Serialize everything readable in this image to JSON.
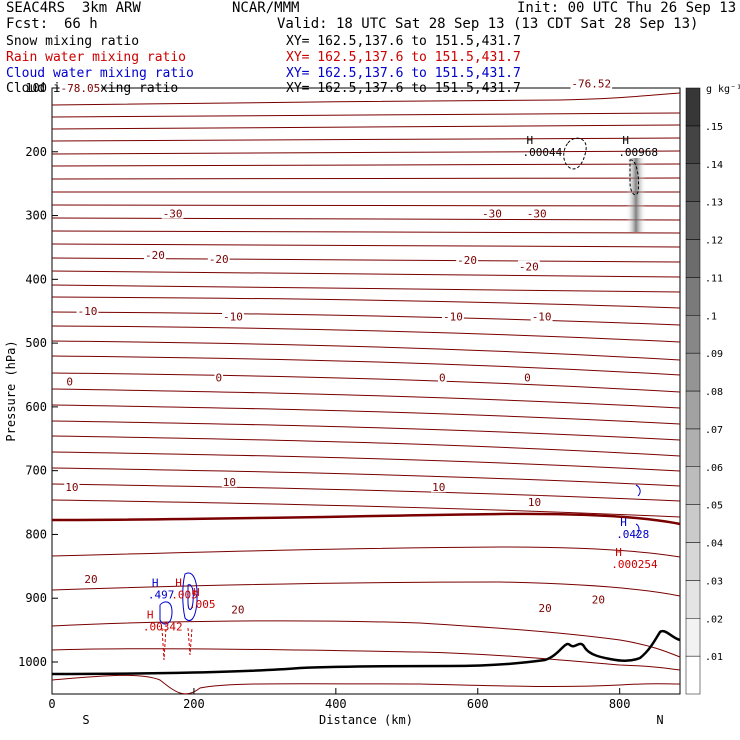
{
  "header": {
    "model": "SEAC4RS  3km ARW",
    "center": "NCAR/MMM",
    "init": "Init: 00 UTC Thu 26 Sep 13",
    "fcst_label": "Fcst:",
    "fcst_value": "66 h",
    "valid": "Valid: 18 UTC Sat 28 Sep 13 (13 CDT Sat 28 Sep 13)",
    "fields": [
      {
        "name": "Snow mixing ratio",
        "xy": "XY= 162.5,137.6 to 151.5,431.7",
        "color": "#000000"
      },
      {
        "name": "Rain water mixing ratio",
        "xy": "XY= 162.5,137.6 to 151.5,431.7",
        "color": "#cc0000"
      },
      {
        "name": "Cloud water mixing ratio",
        "xy": "XY= 162.5,137.6 to 151.5,431.7",
        "color": "#0000cc"
      },
      {
        "name": "Cloud ice mixing ratio",
        "xy": "XY= 162.5,137.6 to 151.5,431.7",
        "color": "#000000"
      }
    ]
  },
  "chart_data": {
    "type": "contour",
    "xlabel": "Distance (km)",
    "ylabel": "Pressure (hPa)",
    "xlim": [
      0,
      885
    ],
    "ylim": [
      1045,
      100
    ],
    "xticks": [
      0,
      200,
      400,
      600,
      800
    ],
    "yticks": [
      100,
      200,
      300,
      400,
      500,
      600,
      700,
      800,
      900,
      1000
    ],
    "x_end_labels": {
      "left": "S",
      "right": "N"
    },
    "temperature_contours": {
      "color": "#7a0000",
      "labels": [
        {
          "text": "-78.05",
          "x": 40,
          "p": 100
        },
        {
          "text": "-76.52",
          "x": 760,
          "p": 93
        },
        {
          "text": "-30",
          "x": 170,
          "p": 297
        },
        {
          "text": "-30",
          "x": 620,
          "p": 297
        },
        {
          "text": "-30",
          "x": 683,
          "p": 297
        },
        {
          "text": "-20",
          "x": 145,
          "p": 362
        },
        {
          "text": "-20",
          "x": 235,
          "p": 368
        },
        {
          "text": "-20",
          "x": 585,
          "p": 370
        },
        {
          "text": "-20",
          "x": 672,
          "p": 380
        },
        {
          "text": "-10",
          "x": 50,
          "p": 450
        },
        {
          "text": "-10",
          "x": 255,
          "p": 458
        },
        {
          "text": "-10",
          "x": 565,
          "p": 458
        },
        {
          "text": "-10",
          "x": 690,
          "p": 458
        },
        {
          "text": "0",
          "x": 25,
          "p": 560
        },
        {
          "text": "0",
          "x": 235,
          "p": 554
        },
        {
          "text": "0",
          "x": 550,
          "p": 554
        },
        {
          "text": "0",
          "x": 670,
          "p": 554
        },
        {
          "text": "10",
          "x": 28,
          "p": 726
        },
        {
          "text": "10",
          "x": 250,
          "p": 718
        },
        {
          "text": "10",
          "x": 545,
          "p": 726
        },
        {
          "text": "10",
          "x": 680,
          "p": 749
        },
        {
          "text": "20",
          "x": 55,
          "p": 870
        },
        {
          "text": "20",
          "x": 262,
          "p": 918
        },
        {
          "text": "20",
          "x": 695,
          "p": 915
        },
        {
          "text": "20",
          "x": 770,
          "p": 902
        }
      ]
    },
    "annotations": [
      {
        "kind": "H",
        "value": ".00044",
        "x": 680,
        "p": 191,
        "series": "Cloud ice mixing ratio"
      },
      {
        "kind": "H",
        "value": ".00968",
        "x": 815,
        "p": 191,
        "series": "Cloud ice mixing ratio"
      },
      {
        "kind": "H",
        "value": ".497",
        "x": 152,
        "p": 885,
        "series": "Cloud water mixing ratio"
      },
      {
        "kind": "H",
        "value": ".005",
        "x": 185,
        "p": 885,
        "series": "Rain water mixing ratio"
      },
      {
        "kind": "H",
        "value": ".005",
        "x": 210,
        "p": 900,
        "series": "Rain water mixing ratio"
      },
      {
        "kind": "H",
        "value": ".00342",
        "x": 145,
        "p": 935,
        "series": "Rain water mixing ratio"
      },
      {
        "kind": "H",
        "value": ".0428",
        "x": 812,
        "p": 790,
        "series": "Cloud water mixing ratio"
      },
      {
        "kind": "H",
        "value": ".000254",
        "x": 805,
        "p": 837,
        "series": "Rain water mixing ratio"
      }
    ],
    "colorbar": {
      "unit": "g kg⁻¹",
      "ticks": [
        ".01",
        ".02",
        ".03",
        ".04",
        ".05",
        ".06",
        ".07",
        ".08",
        ".09",
        ".1",
        ".11",
        ".12",
        ".13",
        ".14",
        ".15"
      ]
    }
  }
}
